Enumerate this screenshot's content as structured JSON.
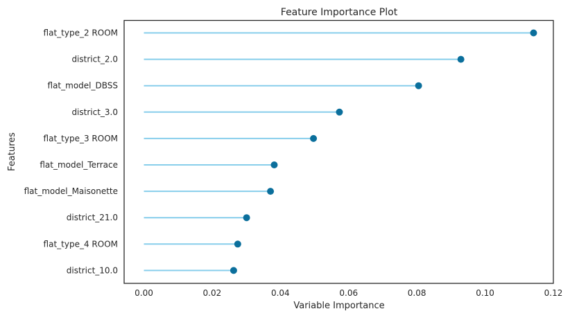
{
  "chart_data": {
    "type": "lollipop",
    "title": "Feature Importance Plot",
    "xlabel": "Variable Importance",
    "ylabel": "Features",
    "xlim": [
      -0.006,
      0.12
    ],
    "xticks": [
      "0.00",
      "0.02",
      "0.04",
      "0.06",
      "0.08",
      "0.10",
      "0.12"
    ],
    "grid": false,
    "categories": [
      "flat_type_2 ROOM",
      "district_2.0",
      "flat_model_DBSS",
      "district_3.0",
      "flat_type_3 ROOM",
      "flat_model_Terrace",
      "flat_model_Maisonette",
      "district_21.0",
      "flat_type_4 ROOM",
      "district_10.0"
    ],
    "values": [
      0.1142,
      0.0929,
      0.0805,
      0.0573,
      0.0497,
      0.0382,
      0.0371,
      0.0301,
      0.0275,
      0.0263
    ],
    "line_color": "#87ceeb",
    "marker_color": "#0b6f9c",
    "frame_color": "#262626"
  }
}
